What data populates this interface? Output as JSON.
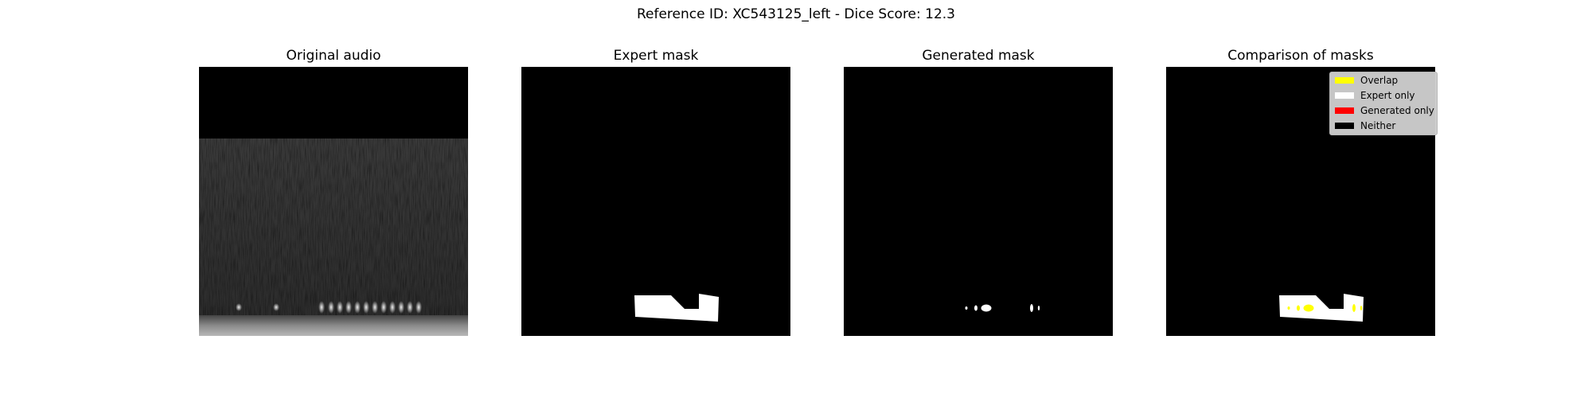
{
  "suptitle": "Reference ID: XC543125_left - Dice Score: 12.3",
  "chart_data": [
    {
      "type": "heatmap",
      "title": "Original audio",
      "description_type": "spectrogram"
    },
    {
      "type": "heatmap",
      "title": "Expert mask"
    },
    {
      "type": "heatmap",
      "title": "Generated mask"
    },
    {
      "type": "heatmap",
      "title": "Comparison of masks",
      "legend": {
        "placement": "top-right",
        "entries": [
          {
            "label": "Overlap",
            "color": "#ffff00"
          },
          {
            "label": "Expert only",
            "color": "#ffffff"
          },
          {
            "label": "Generated only",
            "color": "#ff0000"
          },
          {
            "label": "Neither",
            "color": "#000000"
          }
        ]
      }
    }
  ],
  "colors": {
    "background": "#000000",
    "mask": "#ffffff",
    "overlap": "#ffff00"
  }
}
